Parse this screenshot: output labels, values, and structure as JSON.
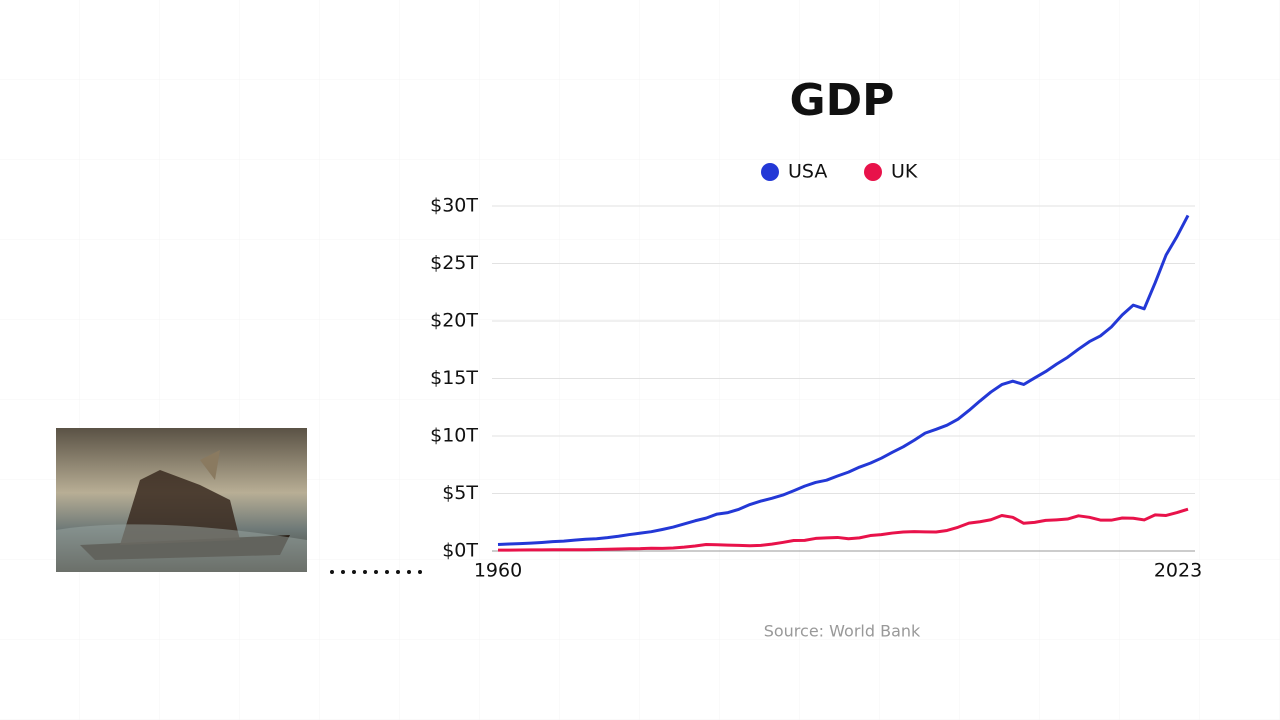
{
  "chart_data": {
    "type": "line",
    "title": "GDP",
    "source": "Source: World Bank",
    "x": [
      1960,
      1961,
      1962,
      1963,
      1964,
      1965,
      1966,
      1967,
      1968,
      1969,
      1970,
      1971,
      1972,
      1973,
      1974,
      1975,
      1976,
      1977,
      1978,
      1979,
      1980,
      1981,
      1982,
      1983,
      1984,
      1985,
      1986,
      1987,
      1988,
      1989,
      1990,
      1991,
      1992,
      1993,
      1994,
      1995,
      1996,
      1997,
      1998,
      1999,
      2000,
      2001,
      2002,
      2003,
      2004,
      2005,
      2006,
      2007,
      2008,
      2009,
      2010,
      2011,
      2012,
      2013,
      2014,
      2015,
      2016,
      2017,
      2018,
      2019,
      2020,
      2021,
      2022,
      2023
    ],
    "series": [
      {
        "name": "USA",
        "color": "#2338d6",
        "values": [
          0.563,
          0.605,
          0.638,
          0.686,
          0.744,
          0.815,
          0.862,
          0.942,
          1.02,
          1.07,
          1.16,
          1.28,
          1.43,
          1.55,
          1.68,
          1.87,
          2.08,
          2.35,
          2.63,
          2.86,
          3.21,
          3.34,
          3.63,
          4.04,
          4.34,
          4.58,
          4.86,
          5.24,
          5.64,
          5.96,
          6.16,
          6.52,
          6.86,
          7.29,
          7.64,
          8.07,
          8.58,
          9.06,
          9.63,
          10.25,
          10.58,
          10.94,
          11.46,
          12.22,
          13.04,
          13.82,
          14.47,
          14.77,
          14.48,
          15.05,
          15.6,
          16.25,
          16.84,
          17.55,
          18.21,
          18.7,
          19.48,
          20.53,
          21.38,
          21.06,
          23.32,
          25.74,
          27.36,
          29.18
        ]
      },
      {
        "name": "UK",
        "color": "#e8124a",
        "values": [
          0.077,
          0.081,
          0.086,
          0.094,
          0.1,
          0.106,
          0.111,
          0.104,
          0.113,
          0.131,
          0.148,
          0.17,
          0.193,
          0.206,
          0.241,
          0.232,
          0.263,
          0.336,
          0.438,
          0.565,
          0.54,
          0.515,
          0.489,
          0.461,
          0.489,
          0.601,
          0.745,
          0.91,
          0.927,
          1.093,
          1.142,
          1.179,
          1.061,
          1.14,
          1.345,
          1.42,
          1.56,
          1.654,
          1.687,
          1.666,
          1.65,
          1.786,
          2.063,
          2.422,
          2.544,
          2.72,
          3.09,
          2.93,
          2.41,
          2.49,
          2.66,
          2.71,
          2.78,
          3.06,
          2.93,
          2.69,
          2.68,
          2.87,
          2.85,
          2.7,
          3.14,
          3.09,
          3.34,
          3.64
        ]
      }
    ],
    "xlim": [
      1960,
      2023
    ],
    "xticks": [
      1960,
      2023
    ],
    "ylim": [
      0,
      30
    ],
    "yticks": [
      {
        "value": 0,
        "label": "$0T"
      },
      {
        "value": 5,
        "label": "$5T"
      },
      {
        "value": 10,
        "label": "$10T"
      },
      {
        "value": 15,
        "label": "$15T"
      },
      {
        "value": 20,
        "label": "$20T"
      },
      {
        "value": 25,
        "label": "$25T"
      },
      {
        "value": 30,
        "label": "$30T"
      }
    ],
    "grid": true
  }
}
